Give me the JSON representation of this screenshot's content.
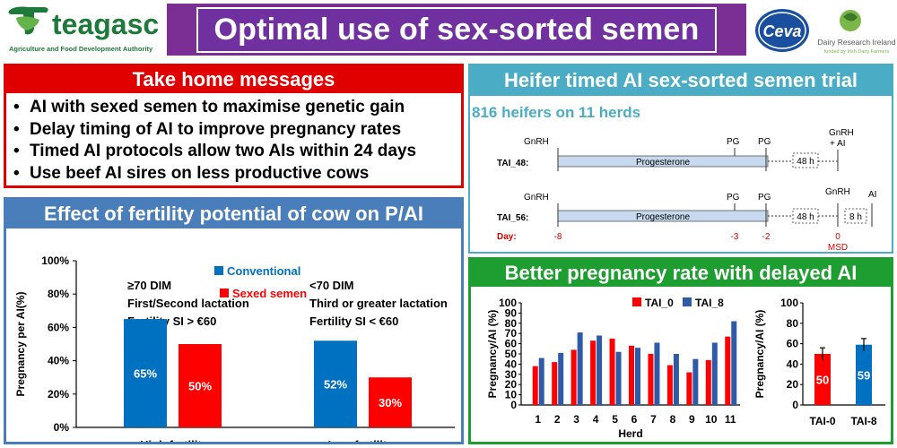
{
  "header": {
    "logo_name": "teagasc",
    "logo_tagline": "Agriculture and Food Development Authority",
    "title": "Optimal use of sex-sorted semen",
    "partner_logo_1": "Ceva",
    "partner_logo_2": "Dairy Research Ireland",
    "partner_logo_2_sub": "funded by Irish Dairy Farmers"
  },
  "take_home": {
    "title": "Take home messages",
    "items": [
      "AI with sexed semen to maximise genetic gain",
      "Delay timing of AI to improve pregnancy rates",
      "Timed AI protocols allow two AIs within 24 days",
      "Use beef AI sires on less productive cows"
    ]
  },
  "fertility": {
    "title": "Effect of fertility potential of cow on P/AI",
    "legend": [
      "Conventional",
      "Sexed semen"
    ],
    "group_notes": [
      [
        "≥70 DIM",
        "First/Second lactation",
        "Fertility SI > €60"
      ],
      [
        "<70 DIM",
        "Third or greater lactation",
        "Fertility SI < €60"
      ]
    ]
  },
  "heifer": {
    "title": "Heifer timed AI sex-sorted semen trial",
    "subtitle": "816 heifers on 11 herds",
    "row1_label": "TAI_48:",
    "row2_label": "TAI_56:",
    "day_label": "Day:",
    "gnrh": "GnRH",
    "pg": "PG",
    "progesterone": "Progesterone",
    "gnrh_ai": "+ AI",
    "ai": "AI",
    "h48": "48 h",
    "h8": "8 h",
    "days": [
      "-8",
      "-3",
      "-2",
      "0"
    ],
    "msd": "MSD"
  },
  "better": {
    "title": "Better pregnancy rate with delayed AI"
  },
  "colors": {
    "conventional": "#0070c0",
    "sexed": "#ff0000",
    "tai0": "#ff0000",
    "tai8": "#2e5aa8",
    "cyan_text": "#4bacc6",
    "day_red": "#e00000"
  },
  "chart_data": [
    {
      "type": "bar",
      "categories": [
        "High fertility",
        "Low fertility"
      ],
      "series": [
        {
          "name": "Conventional",
          "values": [
            65,
            52
          ]
        },
        {
          "name": "Sexed semen",
          "values": [
            50,
            30
          ]
        }
      ],
      "data_labels": [
        [
          "65%",
          "50%"
        ],
        [
          "52%",
          "30%"
        ]
      ],
      "xlabel": "",
      "ylabel": "Pregnancy per AI(%)",
      "ylim": [
        0,
        100
      ],
      "yticks": [
        "0%",
        "20%",
        "40%",
        "60%",
        "80%",
        "100%"
      ],
      "grid": false,
      "legend": "top-center"
    },
    {
      "type": "bar",
      "categories": [
        "1",
        "2",
        "3",
        "4",
        "5",
        "6",
        "7",
        "8",
        "9",
        "10",
        "11"
      ],
      "series": [
        {
          "name": "TAI_0",
          "values": [
            38,
            42,
            54,
            63,
            65,
            58,
            50,
            39,
            32,
            44,
            67
          ]
        },
        {
          "name": "TAI_8",
          "values": [
            46,
            51,
            71,
            68,
            52,
            56,
            61,
            50,
            45,
            61,
            82
          ]
        }
      ],
      "xlabel": "Herd",
      "ylabel": "Pregnancy/AI (%)",
      "ylim": [
        0,
        100
      ],
      "yticks": [
        "0",
        "10",
        "20",
        "30",
        "40",
        "50",
        "60",
        "70",
        "80",
        "90",
        "100"
      ],
      "grid": false,
      "legend": "top"
    },
    {
      "type": "bar",
      "categories": [
        "TAI-0",
        "TAI-8"
      ],
      "values": [
        50,
        59
      ],
      "data_labels": [
        "50",
        "59"
      ],
      "error": [
        6,
        6
      ],
      "ylabel": "Pregnancy/AI (%)",
      "ylim": [
        0,
        100
      ],
      "yticks": [
        "0",
        "20",
        "40",
        "60",
        "80",
        "100"
      ],
      "grid": false
    }
  ]
}
